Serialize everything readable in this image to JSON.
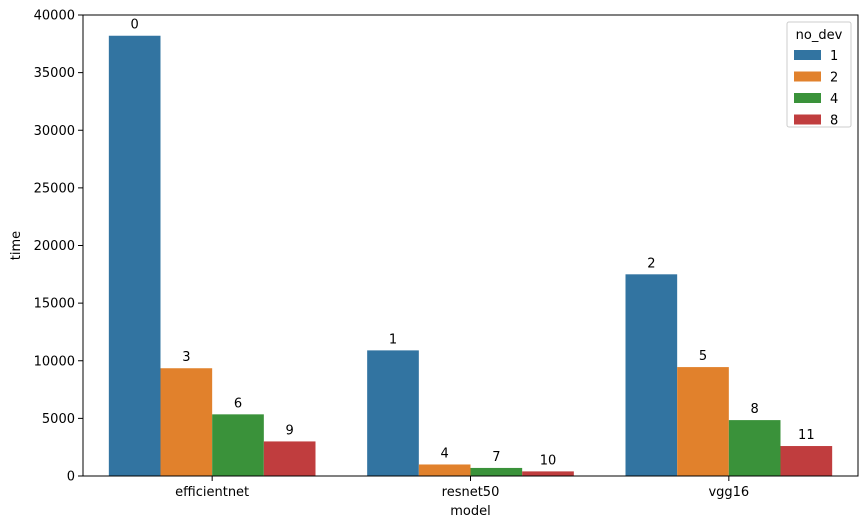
{
  "chart_data": {
    "type": "bar",
    "title": "",
    "xlabel": "model",
    "ylabel": "time",
    "ylim": [
      0,
      40000
    ],
    "yticks": [
      0,
      5000,
      10000,
      15000,
      20000,
      25000,
      30000,
      35000,
      40000
    ],
    "categories": [
      "efficientnet",
      "resnet50",
      "vgg16"
    ],
    "grid": false,
    "legend": {
      "title": "no_dev",
      "placement": "top-right"
    },
    "series": [
      {
        "name": "1",
        "color": "#3274a1",
        "values": [
          38200,
          10900,
          17500
        ],
        "labels": [
          "0",
          "1",
          "2"
        ]
      },
      {
        "name": "2",
        "color": "#e1812c",
        "values": [
          9350,
          1000,
          9450
        ],
        "labels": [
          "3",
          "4",
          "5"
        ]
      },
      {
        "name": "4",
        "color": "#3a923a",
        "values": [
          5350,
          700,
          4850
        ],
        "labels": [
          "6",
          "7",
          "8"
        ]
      },
      {
        "name": "8",
        "color": "#c03d3e",
        "values": [
          3000,
          400,
          2600
        ],
        "labels": [
          "9",
          "10",
          "11"
        ]
      }
    ]
  }
}
